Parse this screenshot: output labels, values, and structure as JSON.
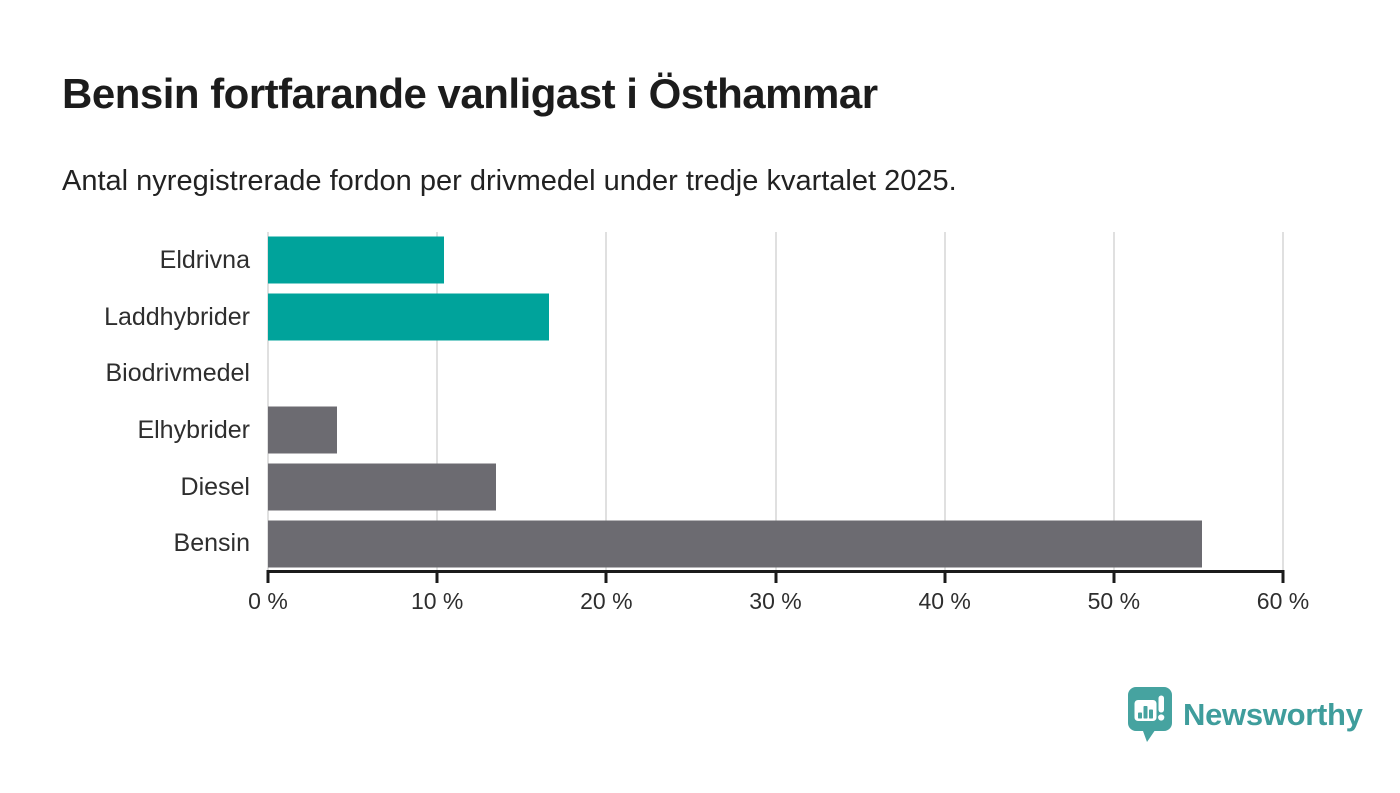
{
  "header": {
    "title": "Bensin fortfarande vanligast i Östhammar",
    "subtitle": "Antal nyregistrerade fordon per drivmedel under tredje kvartalet 2025."
  },
  "chart_data": {
    "type": "bar",
    "orientation": "horizontal",
    "title": "Bensin fortfarande vanligast i Östhammar",
    "subtitle": "Antal nyregistrerade fordon per drivmedel under tredje kvartalet 2025.",
    "categories": [
      "Eldrivna",
      "Laddhybrider",
      "Biodrivmedel",
      "Elhybrider",
      "Diesel",
      "Bensin"
    ],
    "values": [
      10.4,
      16.6,
      0,
      4.1,
      13.5,
      55.2
    ],
    "unit": "%",
    "bar_colors": [
      "#00a39b",
      "#00a39b",
      "#00a39b",
      "#6c6b71",
      "#6c6b71",
      "#6c6b71"
    ],
    "xlim": [
      0,
      60
    ],
    "x_ticks": [
      0,
      10,
      20,
      30,
      40,
      50,
      60
    ],
    "x_tick_labels": [
      "0 %",
      "10 %",
      "20 %",
      "30 %",
      "40 %",
      "50 %",
      "60 %"
    ],
    "grid": "vertical",
    "legend": "none",
    "colors": {
      "highlight": "#00a39b",
      "default": "#6c6b71",
      "gridline": "#e0e0e0",
      "axis": "#1b1b1b",
      "text": "#2e2e2e"
    }
  },
  "branding": {
    "logo_text": "Newsworthy",
    "logo_color": "#46a3a0"
  }
}
